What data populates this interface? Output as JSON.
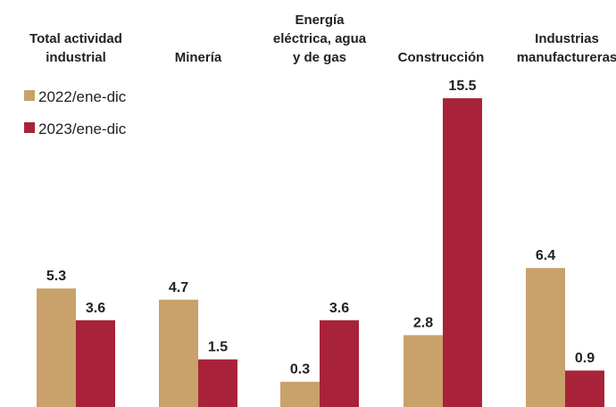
{
  "chart_data": {
    "type": "bar",
    "categories": [
      [
        "Total actividad",
        "industrial"
      ],
      [
        "Minería"
      ],
      [
        "Energía",
        "eléctrica, agua",
        "y de gas"
      ],
      [
        "Construcción"
      ],
      [
        "Industrias",
        "manufactureras"
      ]
    ],
    "series": [
      {
        "name": "2022/ene-dic",
        "color": "#c9a16a",
        "values": [
          5.3,
          4.7,
          0.3,
          2.8,
          6.4
        ],
        "labels": [
          "5.3",
          "4.7",
          "0.3",
          "2.8",
          "6.4"
        ]
      },
      {
        "name": "2023/ene-dic",
        "color": "#a8233a",
        "values": [
          3.6,
          1.5,
          3.6,
          15.5,
          0.9
        ],
        "labels": [
          "3.6",
          "1.5",
          "3.6",
          "15.5",
          "0.9"
        ]
      }
    ],
    "legend_position": "top-left",
    "grid": false
  }
}
